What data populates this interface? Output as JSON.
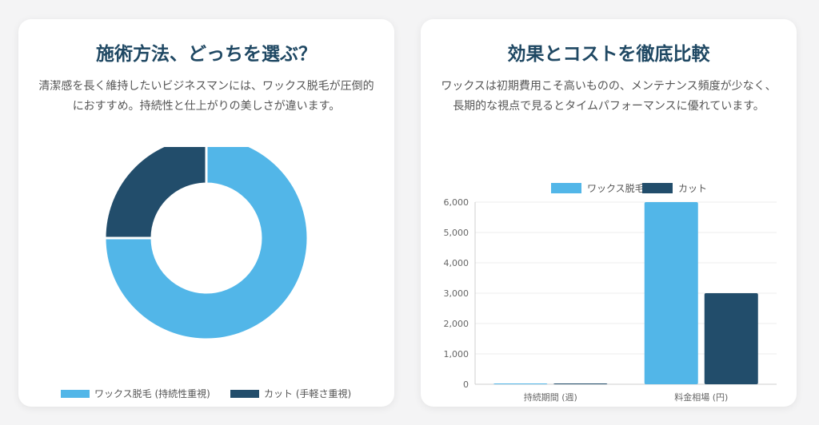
{
  "left_card": {
    "title": "施術方法、どっちを選ぶ？",
    "description": "清潔感を長く維持したいビジネスマンには、ワックス脱毛が圧倒的におすすめ。持続性と仕上がりの美しさが違います。"
  },
  "right_card": {
    "title": "効果とコストを徹底比較",
    "description": "ワックスは初期費用こそ高いものの、メンテナンス頻度が少なく、長期的な視点で見るとタイムパフォーマンスに優れています。"
  },
  "colors": {
    "wax": "#52b6e8",
    "cut": "#224d6b",
    "title": "#1f4863"
  },
  "chart_data": [
    {
      "type": "pie",
      "variant": "doughnut",
      "title": "",
      "labels": [
        "ワックス脱毛 (持続性重視)",
        "カット (手軽さ重視)"
      ],
      "values": [
        75,
        25
      ],
      "colors": [
        "#52b6e8",
        "#224d6b"
      ],
      "legend": "bottom"
    },
    {
      "type": "bar",
      "title": "",
      "categories": [
        "持続期間 (週)",
        "料金相場 (円)"
      ],
      "series": [
        {
          "name": "ワックス脱毛",
          "values": [
            4,
            6000
          ],
          "color": "#52b6e8"
        },
        {
          "name": "カット",
          "values": [
            1,
            3000
          ],
          "color": "#224d6b"
        }
      ],
      "ylim": [
        0,
        6000
      ],
      "yticks": [
        0,
        1000,
        2000,
        3000,
        4000,
        5000,
        6000
      ],
      "ytick_labels": [
        "0",
        "1,000",
        "2,000",
        "3,000",
        "4,000",
        "5,000",
        "6,000"
      ],
      "grid": true,
      "legend": "top"
    }
  ]
}
